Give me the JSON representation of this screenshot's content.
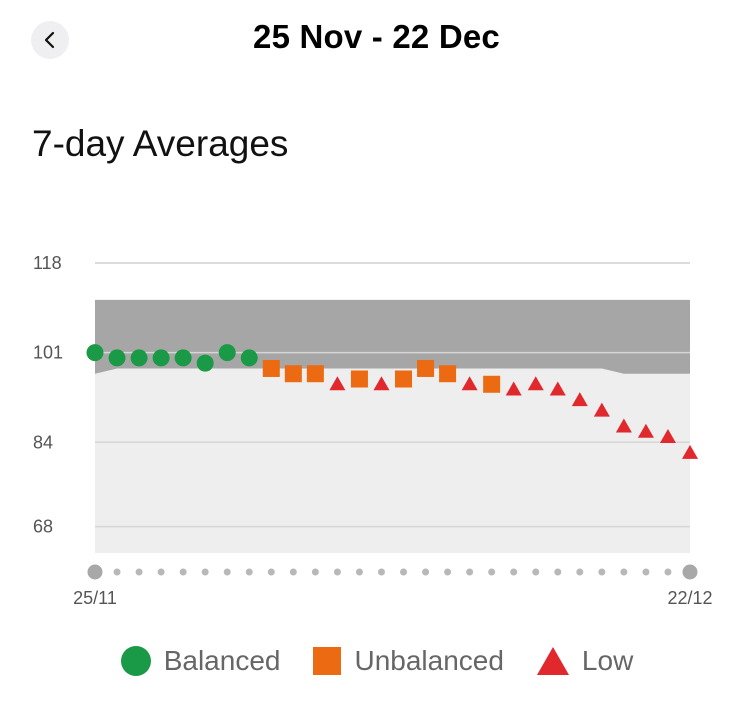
{
  "header": {
    "title": "25 Nov - 22 Dec",
    "back_icon": "chevron-left-icon"
  },
  "section": {
    "title": "7-day Averages"
  },
  "colors": {
    "balanced": "#1a9a47",
    "unbalanced": "#ec6a12",
    "low": "#e0282d",
    "band_dark": "#a6a6a6",
    "band_light": "#eeeeee",
    "grid": "#c8c8c8"
  },
  "chart_data": {
    "type": "scatter",
    "y_ticks": [
      118,
      101,
      84,
      68
    ],
    "ylim": [
      63,
      118
    ],
    "x_start_label": "25/11",
    "x_end_label": "22/12",
    "x_points": 28,
    "band_upper": [
      111,
      111,
      111,
      111,
      111,
      111,
      111,
      111,
      111,
      111,
      111,
      111,
      111,
      111,
      111,
      111,
      111,
      111,
      111,
      111,
      111,
      111,
      111,
      111,
      111,
      111,
      111,
      111
    ],
    "band_lower": [
      97,
      98,
      98,
      98,
      98,
      98,
      98,
      98,
      98,
      98,
      98,
      98,
      98,
      98,
      98,
      98,
      98,
      98,
      98,
      98,
      98,
      98,
      98,
      98,
      97,
      97,
      97,
      97
    ],
    "series": [
      {
        "name": "Balanced",
        "marker": "circle",
        "points": [
          [
            0,
            101
          ],
          [
            1,
            100
          ],
          [
            2,
            100
          ],
          [
            3,
            100
          ],
          [
            4,
            100
          ],
          [
            5,
            99
          ],
          [
            6,
            101
          ],
          [
            7,
            100
          ]
        ]
      },
      {
        "name": "Unbalanced",
        "marker": "square",
        "points": [
          [
            8,
            98
          ],
          [
            9,
            97
          ],
          [
            10,
            97
          ],
          [
            12,
            96
          ],
          [
            14,
            96
          ],
          [
            15,
            98
          ],
          [
            16,
            97
          ],
          [
            18,
            95
          ]
        ]
      },
      {
        "name": "Low",
        "marker": "triangle",
        "points": [
          [
            11,
            95
          ],
          [
            13,
            95
          ],
          [
            17,
            95
          ],
          [
            19,
            94
          ],
          [
            20,
            95
          ],
          [
            21,
            94
          ],
          [
            22,
            92
          ],
          [
            23,
            90
          ],
          [
            24,
            87
          ],
          [
            25,
            86
          ],
          [
            26,
            85
          ],
          [
            27,
            82
          ]
        ]
      }
    ]
  },
  "legend": [
    {
      "label": "Balanced",
      "marker": "circle"
    },
    {
      "label": "Unbalanced",
      "marker": "square"
    },
    {
      "label": "Low",
      "marker": "triangle"
    }
  ]
}
